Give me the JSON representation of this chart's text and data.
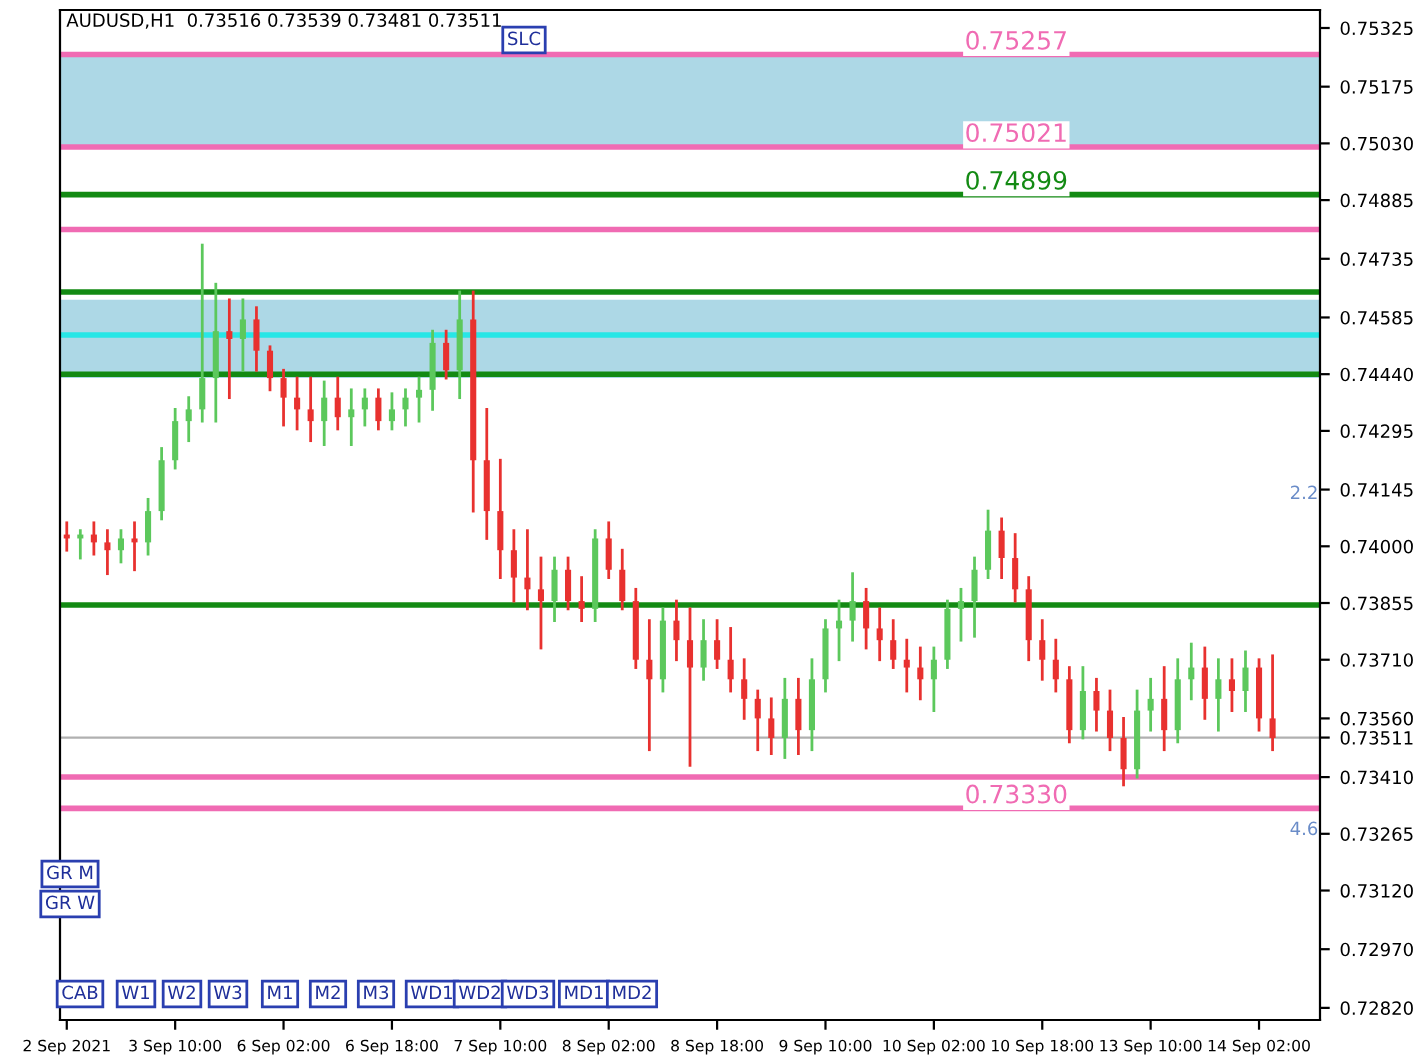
{
  "chart_data": {
    "type": "candlestick",
    "title": "AUDUSD,H1  0.73516 0.73539 0.73481 0.73511",
    "categories": [
      "2 Sep 2021",
      null,
      null,
      null,
      null,
      null,
      null,
      null,
      "3 Sep 10:00",
      null,
      null,
      null,
      null,
      null,
      null,
      null,
      "6 Sep 02:00",
      null,
      null,
      null,
      null,
      null,
      null,
      null,
      "6 Sep 18:00",
      null,
      null,
      null,
      null,
      null,
      null,
      null,
      "7 Sep 10:00",
      null,
      null,
      null,
      null,
      null,
      null,
      null,
      "8 Sep 02:00",
      null,
      null,
      null,
      null,
      null,
      null,
      null,
      "8 Sep 18:00",
      null,
      null,
      null,
      null,
      null,
      null,
      null,
      "9 Sep 10:00",
      null,
      null,
      null,
      null,
      null,
      null,
      null,
      "10 Sep 02:00",
      null,
      null,
      null,
      null,
      null,
      null,
      null,
      "10 Sep 18:00",
      null,
      null,
      null,
      null,
      null,
      null,
      null,
      "13 Sep 10:00",
      null,
      null,
      null,
      null,
      null,
      null,
      null,
      "14 Sep 02:00",
      null
    ],
    "ohlc": [
      [
        0.7403,
        0.7406,
        0.7399,
        0.7402
      ],
      [
        0.7402,
        0.7404,
        0.7397,
        0.7403
      ],
      [
        0.7403,
        0.7406,
        0.7398,
        0.7401
      ],
      [
        0.7401,
        0.7404,
        0.7393,
        0.7399
      ],
      [
        0.7399,
        0.7404,
        0.7396,
        0.7402
      ],
      [
        0.7402,
        0.7406,
        0.7394,
        0.7401
      ],
      [
        0.7401,
        0.7412,
        0.7398,
        0.7409
      ],
      [
        0.7409,
        0.7425,
        0.7407,
        0.7422
      ],
      [
        0.7422,
        0.7435,
        0.742,
        0.7432
      ],
      [
        0.7432,
        0.7438,
        0.7427,
        0.7435
      ],
      [
        0.7435,
        0.7477,
        0.7432,
        0.7443
      ],
      [
        0.7443,
        0.7467,
        0.7432,
        0.7455
      ],
      [
        0.7455,
        0.7463,
        0.7438,
        0.7453
      ],
      [
        0.7453,
        0.7463,
        0.7445,
        0.7458
      ],
      [
        0.7458,
        0.7461,
        0.7445,
        0.745
      ],
      [
        0.745,
        0.7451,
        0.744,
        0.7443
      ],
      [
        0.7443,
        0.7445,
        0.7431,
        0.7438
      ],
      [
        0.7438,
        0.7443,
        0.743,
        0.7435
      ],
      [
        0.7435,
        0.7443,
        0.7427,
        0.7432
      ],
      [
        0.7432,
        0.7442,
        0.7426,
        0.7438
      ],
      [
        0.7438,
        0.7443,
        0.743,
        0.7433
      ],
      [
        0.7433,
        0.744,
        0.7426,
        0.7435
      ],
      [
        0.7435,
        0.744,
        0.7431,
        0.7438
      ],
      [
        0.7438,
        0.744,
        0.743,
        0.7432
      ],
      [
        0.7432,
        0.7439,
        0.743,
        0.7435
      ],
      [
        0.7435,
        0.744,
        0.7431,
        0.7438
      ],
      [
        0.7438,
        0.7443,
        0.7432,
        0.744
      ],
      [
        0.744,
        0.7455,
        0.7435,
        0.7452
      ],
      [
        0.7452,
        0.7455,
        0.7443,
        0.7445
      ],
      [
        0.7445,
        0.7465,
        0.7438,
        0.7458
      ],
      [
        0.7458,
        0.7465,
        0.7409,
        0.7422
      ],
      [
        0.7422,
        0.7435,
        0.7402,
        0.7409
      ],
      [
        0.7409,
        0.7422,
        0.7392,
        0.7399
      ],
      [
        0.7399,
        0.7404,
        0.7386,
        0.7392
      ],
      [
        0.7392,
        0.7404,
        0.7384,
        0.7389
      ],
      [
        0.7389,
        0.7397,
        0.7374,
        0.7386
      ],
      [
        0.7386,
        0.7397,
        0.7381,
        0.7394
      ],
      [
        0.7394,
        0.7397,
        0.7384,
        0.7386
      ],
      [
        0.7386,
        0.7392,
        0.7381,
        0.7384
      ],
      [
        0.7384,
        0.7404,
        0.7381,
        0.7402
      ],
      [
        0.7402,
        0.7406,
        0.7392,
        0.7394
      ],
      [
        0.7394,
        0.7399,
        0.7384,
        0.7386
      ],
      [
        0.7386,
        0.7389,
        0.7369,
        0.7371
      ],
      [
        0.7371,
        0.7381,
        0.7348,
        0.7366
      ],
      [
        0.7366,
        0.7384,
        0.7363,
        0.7381
      ],
      [
        0.7381,
        0.7386,
        0.7371,
        0.7376
      ],
      [
        0.7376,
        0.7384,
        0.7344,
        0.7369
      ],
      [
        0.7369,
        0.7381,
        0.7366,
        0.7376
      ],
      [
        0.7376,
        0.7381,
        0.7369,
        0.7371
      ],
      [
        0.7371,
        0.7379,
        0.7363,
        0.7366
      ],
      [
        0.7366,
        0.7371,
        0.7356,
        0.7361
      ],
      [
        0.7361,
        0.7363,
        0.7348,
        0.7356
      ],
      [
        0.7356,
        0.7361,
        0.7347,
        0.7351
      ],
      [
        0.7351,
        0.7366,
        0.7346,
        0.7361
      ],
      [
        0.7361,
        0.7366,
        0.7347,
        0.7353
      ],
      [
        0.7353,
        0.7371,
        0.7348,
        0.7366
      ],
      [
        0.7366,
        0.7381,
        0.7363,
        0.7379
      ],
      [
        0.7379,
        0.7386,
        0.7371,
        0.7381
      ],
      [
        0.7381,
        0.7393,
        0.7376,
        0.7386
      ],
      [
        0.7386,
        0.7389,
        0.7374,
        0.7379
      ],
      [
        0.7379,
        0.7384,
        0.7371,
        0.7376
      ],
      [
        0.7376,
        0.7381,
        0.7369,
        0.7371
      ],
      [
        0.7371,
        0.7376,
        0.7363,
        0.7369
      ],
      [
        0.7369,
        0.7374,
        0.7361,
        0.7366
      ],
      [
        0.7366,
        0.7374,
        0.7358,
        0.7371
      ],
      [
        0.7371,
        0.7386,
        0.7369,
        0.7384
      ],
      [
        0.7384,
        0.7389,
        0.7376,
        0.7386
      ],
      [
        0.7386,
        0.7397,
        0.7377,
        0.7394
      ],
      [
        0.7394,
        0.7409,
        0.7392,
        0.7404
      ],
      [
        0.7404,
        0.7407,
        0.7392,
        0.7397
      ],
      [
        0.7397,
        0.7403,
        0.7386,
        0.7389
      ],
      [
        0.7389,
        0.7392,
        0.7371,
        0.7376
      ],
      [
        0.7376,
        0.7381,
        0.7366,
        0.7371
      ],
      [
        0.7371,
        0.7376,
        0.7363,
        0.7366
      ],
      [
        0.7366,
        0.7369,
        0.735,
        0.7353
      ],
      [
        0.7353,
        0.7369,
        0.7351,
        0.7363
      ],
      [
        0.7363,
        0.7366,
        0.7353,
        0.7358
      ],
      [
        0.7358,
        0.7363,
        0.7348,
        0.7351
      ],
      [
        0.7351,
        0.7356,
        0.7339,
        0.7343
      ],
      [
        0.7343,
        0.7363,
        0.7341,
        0.7358
      ],
      [
        0.7358,
        0.7366,
        0.7353,
        0.7361
      ],
      [
        0.7361,
        0.7369,
        0.7348,
        0.7353
      ],
      [
        0.7353,
        0.7371,
        0.735,
        0.7366
      ],
      [
        0.7366,
        0.7375,
        0.7361,
        0.7369
      ],
      [
        0.7369,
        0.7374,
        0.7356,
        0.7361
      ],
      [
        0.7361,
        0.7371,
        0.7353,
        0.7366
      ],
      [
        0.7366,
        0.7371,
        0.7358,
        0.7363
      ],
      [
        0.7363,
        0.7373,
        0.7358,
        0.7369
      ],
      [
        0.7369,
        0.7371,
        0.7353,
        0.7356
      ],
      [
        0.7356,
        0.7372,
        0.7348,
        0.7351
      ]
    ],
    "colors": [
      "#e8312f",
      "#5cc85c",
      "#e8312f",
      "#e8312f",
      "#5cc85c",
      "#e8312f",
      "#5cc85c",
      "#5cc85c",
      "#5cc85c",
      "#5cc85c",
      "#5cc85c",
      "#5cc85c",
      "#e8312f",
      "#5cc85c",
      "#e8312f",
      "#e8312f",
      "#e8312f",
      "#e8312f",
      "#e8312f",
      "#5cc85c",
      "#e8312f",
      "#5cc85c",
      "#5cc85c",
      "#e8312f",
      "#5cc85c",
      "#5cc85c",
      "#5cc85c",
      "#5cc85c",
      "#e8312f",
      "#5cc85c",
      "#e8312f",
      "#e8312f",
      "#e8312f",
      "#e8312f",
      "#e8312f",
      "#e8312f",
      "#5cc85c",
      "#e8312f",
      "#e8312f",
      "#5cc85c",
      "#e8312f",
      "#e8312f",
      "#e8312f",
      "#e8312f",
      "#5cc85c",
      "#e8312f",
      "#e8312f",
      "#5cc85c",
      "#e8312f",
      "#e8312f",
      "#e8312f",
      "#e8312f",
      "#e8312f",
      "#5cc85c",
      "#e8312f",
      "#5cc85c",
      "#5cc85c",
      "#5cc85c",
      "#5cc85c",
      "#e8312f",
      "#e8312f",
      "#e8312f",
      "#e8312f",
      "#e8312f",
      "#5cc85c",
      "#5cc85c",
      "#5cc85c",
      "#5cc85c",
      "#5cc85c",
      "#e8312f",
      "#e8312f",
      "#e8312f",
      "#e8312f",
      "#e8312f",
      "#e8312f",
      "#5cc85c",
      "#e8312f",
      "#e8312f",
      "#e8312f",
      "#5cc85c",
      "#5cc85c",
      "#e8312f",
      "#5cc85c",
      "#5cc85c",
      "#e8312f",
      "#5cc85c",
      "#e8312f",
      "#5cc85c",
      "#e8312f",
      "#e8312f"
    ],
    "ylim": [
      0.72789,
      0.75371
    ],
    "yticks": [
      0.75325,
      0.75175,
      {
        "value": 0.7503,
        "label": "0.75030"
      },
      0.74885,
      0.74735,
      0.74585,
      {
        "value": 0.7444,
        "label": "0.74440"
      },
      0.74295,
      0.74145,
      {
        "value": 0.74,
        "label": "0.74000"
      },
      0.73855,
      {
        "value": 0.7371,
        "label": "0.73710"
      },
      {
        "value": 0.7356,
        "label": "0.73560"
      },
      {
        "value": 0.73511,
        "label": "0.73511"
      },
      {
        "value": 0.7341,
        "label": "0.73410"
      },
      0.73265,
      {
        "value": 0.7312,
        "label": "0.73120"
      },
      {
        "value": 0.7297,
        "label": "0.72970"
      },
      {
        "value": 0.7282,
        "label": "0.72820"
      }
    ],
    "bands": [
      {
        "axis": "y",
        "from": 0.7443,
        "to": 0.7463,
        "color": "#add8e6"
      },
      {
        "axis": "y",
        "from": 0.75021,
        "to": 0.75257,
        "color": "#add8e6"
      }
    ],
    "ref_lines": [
      {
        "axis": "y",
        "value": 0.75257,
        "label": "0.75257",
        "color": "#f06bb3"
      },
      {
        "axis": "y",
        "value": 0.75021,
        "label": "0.75021",
        "color": "#f06bb3"
      },
      {
        "axis": "y",
        "value": 0.74899,
        "label": "0.74899",
        "color": "#138a13"
      },
      {
        "axis": "y",
        "value": 0.7481,
        "color": "#f06bb3"
      },
      {
        "axis": "y",
        "value": 0.7465,
        "color": "#138a13"
      },
      {
        "axis": "y",
        "value": 0.7454,
        "color": "#27e6e6"
      },
      {
        "axis": "y",
        "value": 0.7444,
        "color": "#138a13"
      },
      {
        "axis": "y",
        "value": 0.7385,
        "color": "#138a13"
      },
      {
        "axis": "y",
        "value": 0.73511,
        "color": "#b0b0b0"
      },
      {
        "axis": "y",
        "value": 0.7341,
        "color": "#f06bb3"
      },
      {
        "axis": "y",
        "value": 0.7333,
        "label": "0.73330",
        "color": "#f06bb3"
      }
    ],
    "annotations": [
      "SLC",
      "GR M",
      "GR W",
      "CAB",
      "W1",
      "W2",
      "W3",
      "M1",
      "M2",
      "M3",
      "WD1",
      "WD2",
      "WD3",
      "MD1",
      "MD2",
      "2.2",
      "4.6"
    ],
    "grid": false,
    "legend": false
  }
}
